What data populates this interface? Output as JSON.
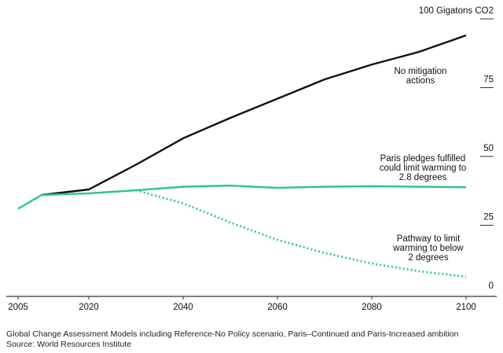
{
  "chart_data": {
    "type": "line",
    "title": "",
    "ylabel_top": "100 Gigatons CO2",
    "xlabel": "",
    "xlim": [
      2005,
      2100
    ],
    "ylim": [
      0,
      100
    ],
    "x_ticks": [
      "2005",
      "2020",
      "2040",
      "2060",
      "2080",
      "2100"
    ],
    "y_ticks": [
      "0",
      "25",
      "50",
      "75"
    ],
    "y_tick_values": [
      0,
      25,
      50,
      75,
      100
    ],
    "grid": false,
    "series": [
      {
        "name": "No mitigation actions",
        "label_lines": [
          "No mitigation",
          "actions"
        ],
        "color": "#111111",
        "style": "solid",
        "x": [
          2010,
          2020,
          2030,
          2040,
          2050,
          2060,
          2070,
          2080,
          2090,
          2100
        ],
        "y": [
          36,
          38,
          47,
          56.6,
          64,
          71,
          78,
          83.4,
          88,
          94
        ]
      },
      {
        "name": "Paris pledges fulfilled could limit warming to 2.8 degrees",
        "label_lines": [
          "Paris pledges fulfilled",
          "could limit warming to",
          "2.8 degrees"
        ],
        "color": "#2ec48e",
        "style": "solid",
        "x": [
          2005,
          2010,
          2020,
          2030,
          2040,
          2050,
          2060,
          2070,
          2080,
          2090,
          2100
        ],
        "y": [
          31,
          36,
          36.6,
          37.7,
          39,
          39.4,
          38.6,
          39,
          39.2,
          39,
          38.8
        ]
      },
      {
        "name": "Pathway to limit warming to below 2 degrees",
        "label_lines": [
          "Pathway to limit",
          "warming to below",
          "2 degrees"
        ],
        "color": "#2ec48e",
        "style": "dotted",
        "x": [
          2030,
          2040,
          2050,
          2060,
          2070,
          2080,
          2090,
          2100
        ],
        "y": [
          37.7,
          33,
          26,
          19.7,
          14.9,
          11.1,
          8.3,
          6.3
        ]
      }
    ]
  },
  "footer": {
    "note": "Global Change Assessment Models including Reference-No Policy scenario, Paris–Continued and Paris-Increased ambition",
    "source": "Source: World Resources Institute"
  }
}
